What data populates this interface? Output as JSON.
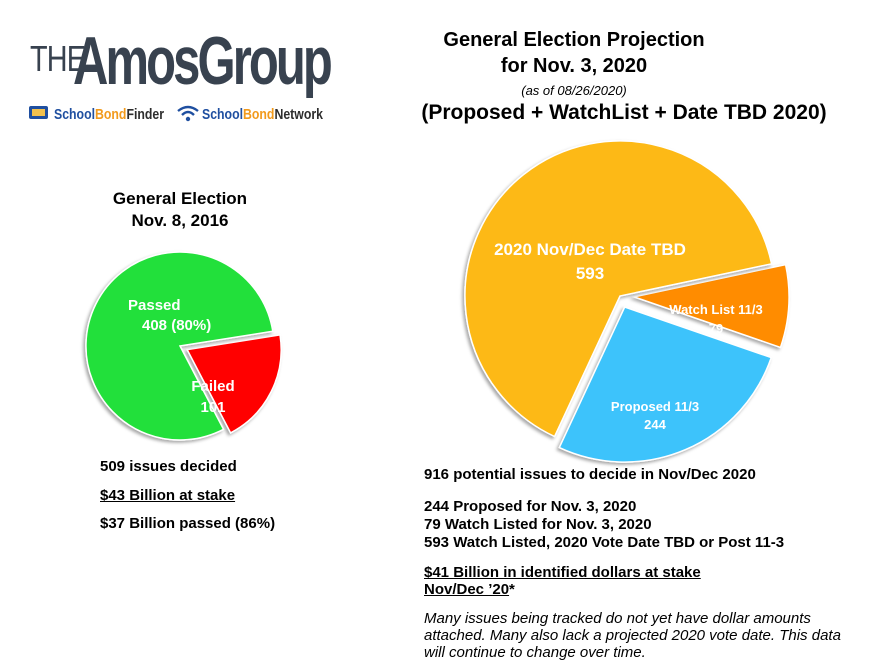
{
  "logo": {
    "the": "THE",
    "name": "AmosGroup",
    "finder_a": "School",
    "finder_b": "Bond",
    "finder_c": "Finder",
    "network_a": "School",
    "network_b": "Bond",
    "network_c": "Network"
  },
  "left": {
    "title_line1": "General Election",
    "title_line2": "Nov. 8, 2016",
    "stats": [
      "509 issues decided",
      "$43 Billion at stake",
      "$37 Billion passed (86%)"
    ]
  },
  "right": {
    "title_line1": "General Election Projection",
    "title_line2": "for Nov. 3, 2020",
    "as_of": "(as of 08/26/2020)",
    "subtitle": "(Proposed + WatchList + Date TBD 2020)",
    "summary": "916 potential issues to decide in Nov/Dec 2020",
    "breakdown": [
      "244 Proposed for Nov. 3, 2020",
      "79 Watch Listed for Nov. 3, 2020",
      "593 Watch Listed, 2020 Vote Date TBD or Post 11-3"
    ],
    "dollars_line1": "$41 Billion in identified dollars at stake",
    "dollars_line2": "Nov/Dec ’20",
    "dollars_star": "*",
    "note": "Many issues being tracked do not yet have dollar amounts attached. Many also lack a projected 2020 vote date. This data will continue to change over time."
  },
  "chart_data": [
    {
      "type": "pie",
      "title": "General Election Nov. 8, 2016",
      "slices": [
        {
          "label": "Passed",
          "value": 408,
          "value_text": "408  (80%)",
          "color": "#22e03a"
        },
        {
          "label": "Failed",
          "value": 101,
          "value_text": "101",
          "color": "#ff0000"
        }
      ]
    },
    {
      "type": "pie",
      "title": "General Election Projection for Nov. 3, 2020",
      "slices": [
        {
          "label": "2020 Nov/Dec Date TBD",
          "value": 593,
          "value_text": "593",
          "color": "#fdb912"
        },
        {
          "label": "Watch List 11/3",
          "value": 79,
          "value_text": "79",
          "color": "#ff8c00"
        },
        {
          "label": "Proposed 11/3",
          "value": 244,
          "value_text": "244",
          "color": "#3ec3fb"
        }
      ]
    }
  ]
}
